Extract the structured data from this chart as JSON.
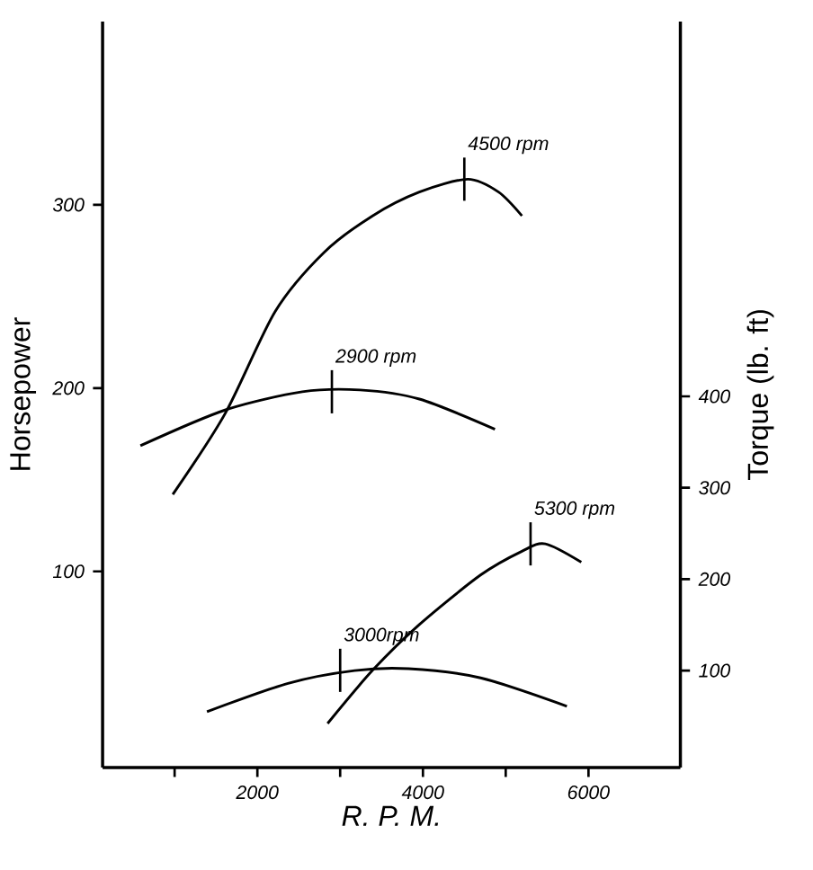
{
  "chart_data": {
    "type": "line",
    "xlabel": "R. P. M.",
    "ylabel": "Horsepower",
    "y2label": "Torque (lb. ft)",
    "xlim": [
      130,
      7110
    ],
    "xticks": [
      {
        "value": 1000,
        "label": null
      },
      2000,
      {
        "value": 3000,
        "label": null
      },
      4000,
      {
        "value": 5000,
        "label": null
      },
      6000
    ],
    "ylim": [
      -7,
      400
    ],
    "yticks": [
      100,
      200,
      300
    ],
    "y2lim": [
      -6,
      810
    ],
    "y2ticks": [
      100,
      200,
      300,
      400
    ],
    "series": [
      {
        "color": "#000000",
        "x": [
          978,
          1609,
          2217,
          2804,
          3391,
          3957,
          4543,
          4913,
          5196
        ],
        "values": [
          142,
          186,
          242,
          274,
          294,
          307,
          314,
          307,
          294
        ]
      },
      {
        "color": "#000000",
        "axis": "y2",
        "x": [
          587,
          1609,
          2543,
          3239,
          3957,
          4870
        ],
        "values": [
          346,
          385,
          405,
          407,
          397,
          364
        ]
      },
      {
        "color": "#000000",
        "x": [
          2848,
          3391,
          3957,
          4696,
          5196,
          5478,
          5913
        ],
        "values": [
          17,
          46,
          71,
          98,
          111,
          115,
          105
        ]
      },
      {
        "color": "#000000",
        "axis": "y2",
        "x": [
          1391,
          2370,
          3174,
          3826,
          4696,
          5739
        ],
        "values": [
          55,
          86,
          100,
          102,
          92,
          61
        ]
      }
    ],
    "annotations": [
      {
        "text": "4500 rpm",
        "x": 4500,
        "y": 314
      },
      {
        "text": "2900 rpm",
        "x": 2900,
        "y": 198
      },
      {
        "text": "5300 rpm",
        "x": 5300,
        "y": 115
      },
      {
        "text": "3000rpm",
        "x": 3000,
        "y": 46
      }
    ],
    "grid": false,
    "marker": "none",
    "line_style": "solid"
  }
}
